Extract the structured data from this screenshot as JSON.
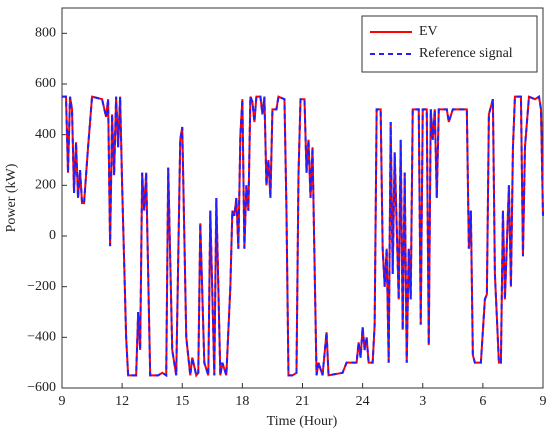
{
  "chart_data": {
    "type": "line",
    "x_label": "Time (Hour)",
    "y_label": "Power (kW)",
    "xlim": [
      9,
      33
    ],
    "xticks": [
      9,
      12,
      15,
      18,
      21,
      24,
      {
        "value": 27,
        "label": "3"
      },
      {
        "value": 30,
        "label": "6"
      },
      {
        "value": 33,
        "label": "9"
      }
    ],
    "ylim": [
      -600,
      900
    ],
    "yticks": [
      {
        "value": -600,
        "label": "−600"
      },
      {
        "value": -400,
        "label": "−400"
      },
      {
        "value": -200,
        "label": "−200"
      },
      0,
      200,
      400,
      600,
      800
    ],
    "legend": "upper right",
    "x": [
      9.0,
      9.2,
      9.3,
      9.4,
      9.5,
      9.6,
      9.7,
      9.8,
      9.9,
      10.0,
      10.1,
      10.3,
      10.5,
      11.0,
      11.2,
      11.3,
      11.4,
      11.5,
      11.6,
      11.7,
      11.8,
      11.9,
      12.0,
      12.2,
      12.3,
      12.7,
      12.8,
      12.9,
      13.0,
      13.1,
      13.2,
      13.4,
      13.8,
      14.0,
      14.2,
      14.3,
      14.5,
      14.7,
      14.9,
      15.0,
      15.2,
      15.4,
      15.5,
      15.7,
      15.8,
      15.9,
      16.1,
      16.3,
      16.4,
      16.6,
      16.7,
      16.9,
      17.0,
      17.2,
      17.4,
      17.5,
      17.6,
      17.7,
      17.8,
      17.9,
      18.0,
      18.1,
      18.2,
      18.3,
      18.4,
      18.5,
      18.6,
      18.7,
      18.9,
      19.0,
      19.1,
      19.2,
      19.3,
      19.4,
      19.5,
      19.7,
      19.8,
      20.1,
      20.2,
      20.3,
      20.5,
      20.7,
      20.8,
      20.9,
      21.1,
      21.2,
      21.3,
      21.4,
      21.5,
      21.7,
      21.8,
      22.0,
      22.2,
      22.3,
      23.0,
      23.2,
      23.7,
      23.8,
      23.9,
      24.0,
      24.1,
      24.2,
      24.3,
      24.5,
      24.6,
      24.7,
      24.9,
      25.0,
      25.1,
      25.2,
      25.3,
      25.4,
      25.5,
      25.6,
      25.8,
      25.9,
      26.0,
      26.1,
      26.2,
      26.3,
      26.4,
      26.5,
      26.8,
      26.9,
      27.0,
      27.2,
      27.3,
      27.4,
      27.5,
      27.6,
      27.7,
      27.8,
      28.2,
      28.3,
      28.5,
      29.2,
      29.3,
      29.4,
      29.5,
      29.6,
      29.9,
      30.1,
      30.2,
      30.3,
      30.5,
      30.6,
      30.8,
      30.9,
      31.0,
      31.1,
      31.3,
      31.4,
      31.5,
      31.6,
      31.9,
      32.0,
      32.1,
      32.3,
      32.6,
      32.8,
      32.9,
      33.0
    ],
    "series": [
      {
        "name": "EV",
        "color": "#ff0000",
        "dash": false,
        "values": [
          550,
          550,
          250,
          550,
          500,
          170,
          370,
          150,
          260,
          130,
          130,
          350,
          550,
          540,
          470,
          540,
          -40,
          480,
          240,
          550,
          350,
          550,
          200,
          -400,
          -550,
          -550,
          -300,
          -450,
          250,
          100,
          250,
          -550,
          -550,
          -540,
          -550,
          270,
          -450,
          -550,
          380,
          430,
          -400,
          -550,
          -480,
          -550,
          -540,
          50,
          -500,
          -550,
          100,
          -550,
          150,
          -550,
          -500,
          -550,
          -200,
          100,
          80,
          150,
          -50,
          400,
          540,
          -50,
          200,
          100,
          550,
          530,
          450,
          550,
          550,
          480,
          550,
          200,
          300,
          150,
          500,
          500,
          550,
          540,
          100,
          -550,
          -550,
          -540,
          240,
          540,
          540,
          250,
          380,
          150,
          350,
          -550,
          -500,
          -550,
          -380,
          -550,
          -540,
          -500,
          -500,
          -420,
          -480,
          -360,
          -450,
          -400,
          -500,
          -500,
          -350,
          500,
          500,
          -50,
          -200,
          -50,
          -500,
          450,
          -150,
          330,
          -250,
          380,
          -370,
          250,
          -500,
          -50,
          -250,
          500,
          500,
          -350,
          500,
          500,
          -430,
          500,
          380,
          500,
          150,
          500,
          500,
          450,
          500,
          500,
          -50,
          100,
          -470,
          -500,
          -500,
          -250,
          -230,
          480,
          540,
          -150,
          -500,
          -500,
          100,
          -250,
          200,
          -200,
          350,
          550,
          550,
          -80,
          350,
          550,
          540,
          550,
          500,
          80
        ]
      },
      {
        "name": "Reference signal",
        "color": "#1f1fff",
        "dash": true,
        "values": [
          550,
          550,
          250,
          550,
          500,
          170,
          370,
          150,
          260,
          130,
          130,
          350,
          550,
          540,
          470,
          540,
          -40,
          480,
          240,
          550,
          350,
          550,
          200,
          -400,
          -550,
          -550,
          -300,
          -450,
          250,
          100,
          250,
          -550,
          -550,
          -540,
          -550,
          270,
          -450,
          -550,
          380,
          430,
          -400,
          -550,
          -480,
          -550,
          -540,
          50,
          -500,
          -550,
          100,
          -550,
          150,
          -550,
          -500,
          -550,
          -200,
          100,
          80,
          150,
          -50,
          400,
          540,
          -50,
          200,
          100,
          550,
          530,
          450,
          550,
          550,
          480,
          550,
          200,
          300,
          150,
          500,
          500,
          550,
          540,
          100,
          -550,
          -550,
          -540,
          240,
          540,
          540,
          250,
          380,
          150,
          350,
          -550,
          -500,
          -550,
          -380,
          -550,
          -540,
          -500,
          -500,
          -420,
          -480,
          -360,
          -450,
          -400,
          -500,
          -500,
          -350,
          500,
          500,
          -50,
          -200,
          -50,
          -500,
          450,
          -150,
          330,
          -250,
          380,
          -370,
          250,
          -500,
          -50,
          -250,
          500,
          500,
          -350,
          500,
          500,
          -430,
          500,
          380,
          500,
          150,
          500,
          500,
          450,
          500,
          500,
          -50,
          100,
          -470,
          -500,
          -500,
          -250,
          -230,
          480,
          540,
          -150,
          -500,
          -500,
          100,
          -250,
          200,
          -200,
          350,
          550,
          550,
          -80,
          350,
          550,
          540,
          550,
          500,
          80
        ]
      }
    ]
  }
}
